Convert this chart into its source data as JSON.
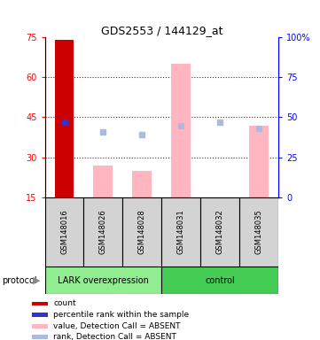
{
  "title": "GDS2553 / 144129_at",
  "samples": [
    "GSM148016",
    "GSM148026",
    "GSM148028",
    "GSM148031",
    "GSM148032",
    "GSM148035"
  ],
  "ylim_left": [
    15,
    75
  ],
  "ylim_right": [
    0,
    100
  ],
  "yticks_left": [
    15,
    30,
    45,
    60,
    75
  ],
  "yticks_right": [
    0,
    25,
    50,
    75,
    100
  ],
  "count_values": [
    74,
    null,
    null,
    null,
    null,
    null
  ],
  "count_color": "#CC0000",
  "percentile_values": [
    47,
    null,
    null,
    null,
    null,
    null
  ],
  "percentile_color": "#3333CC",
  "value_absent": [
    null,
    27,
    25,
    65,
    null,
    42
  ],
  "value_absent_color": "#FFB6C1",
  "rank_absent": [
    null,
    41,
    39,
    45,
    47,
    43
  ],
  "rank_absent_color": "#AABBDD",
  "bar_width": 0.5,
  "lark_color": "#90EE90",
  "control_color": "#44CC55",
  "sample_box_color": "#D3D3D3",
  "legend_items": [
    {
      "label": "count",
      "color": "#CC0000"
    },
    {
      "label": "percentile rank within the sample",
      "color": "#3333CC"
    },
    {
      "label": "value, Detection Call = ABSENT",
      "color": "#FFB6C1"
    },
    {
      "label": "rank, Detection Call = ABSENT",
      "color": "#AABBDD"
    }
  ]
}
